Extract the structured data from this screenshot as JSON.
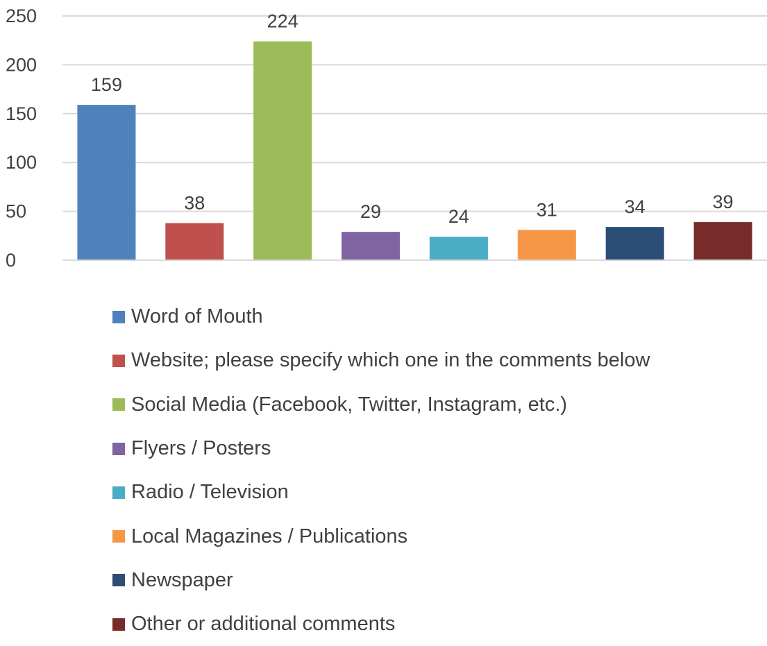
{
  "chart_data": {
    "type": "bar",
    "title": "",
    "xlabel": "",
    "ylabel": "",
    "ylim": [
      0,
      250
    ],
    "yticks": [
      0,
      50,
      100,
      150,
      200,
      250
    ],
    "grid": true,
    "legend_position": "bottom",
    "categories": [
      "Word of Mouth",
      "Website; please specify which one in the comments below",
      "Social Media (Facebook, Twitter, Instagram, etc.)",
      "Flyers / Posters",
      "Radio / Television",
      "Local Magazines / Publications",
      "Newspaper",
      "Other or additional comments"
    ],
    "values": [
      159,
      38,
      224,
      29,
      24,
      31,
      34,
      39
    ],
    "colors": [
      "#4f81bd",
      "#c0504d",
      "#9bbb59",
      "#8064a2",
      "#4bacc6",
      "#f79646",
      "#2c4d75",
      "#772c2a"
    ]
  }
}
